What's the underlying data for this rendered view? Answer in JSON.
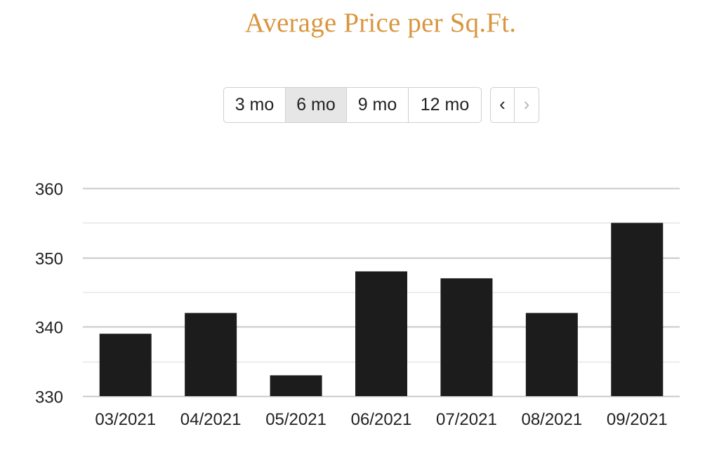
{
  "title": "Average Price per Sq.Ft.",
  "range_buttons": [
    {
      "label": "3 mo",
      "active": false
    },
    {
      "label": "6 mo",
      "active": true
    },
    {
      "label": "9 mo",
      "active": false
    },
    {
      "label": "12 mo",
      "active": false
    }
  ],
  "nav": {
    "prev_icon": "chevron-left-icon",
    "prev_glyph": "‹",
    "next_icon": "chevron-right-icon",
    "next_glyph": "›",
    "next_disabled": true
  },
  "colors": {
    "title": "#d9963f",
    "bar": "#1c1c1c",
    "grid_major": "#c8c8c8",
    "grid_minor": "#e6e6e6"
  },
  "chart_data": {
    "type": "bar",
    "title": "Average Price per Sq.Ft.",
    "xlabel": "",
    "ylabel": "",
    "categories": [
      "03/2021",
      "04/2021",
      "05/2021",
      "06/2021",
      "07/2021",
      "08/2021",
      "09/2021"
    ],
    "values": [
      339,
      342,
      333,
      348,
      347,
      342,
      355
    ],
    "ylim": [
      330,
      360
    ],
    "yticks": [
      330,
      340,
      350,
      360
    ],
    "minor_gridlines": [
      335,
      345,
      355
    ],
    "grid": true,
    "legend": "none"
  }
}
